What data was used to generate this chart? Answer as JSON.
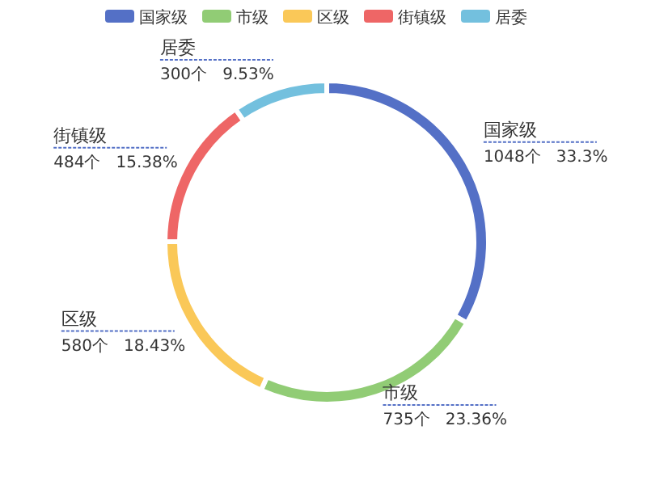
{
  "chart_data": {
    "type": "donut",
    "categories": [
      "国家级",
      "市级",
      "区级",
      "街镇级",
      "居委"
    ],
    "values": [
      1048,
      735,
      580,
      484,
      300
    ],
    "colors": [
      "#5470c6",
      "#91cc75",
      "#fac858",
      "#ee6666",
      "#73c0de"
    ],
    "value_labels": [
      "1048个   33.3%",
      "735个   23.36%",
      "580个   18.43%",
      "484个   15.38%",
      "300个   9.53%"
    ],
    "legend": "top"
  }
}
